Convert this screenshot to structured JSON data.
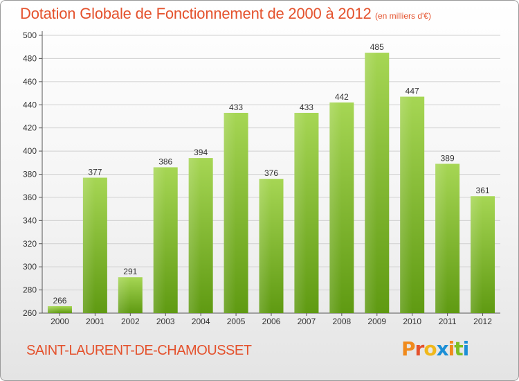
{
  "header": {
    "title": "Dotation Globale de Fonctionnement de 2000 à 2012",
    "unit": "(en milliers d'€)"
  },
  "footer": {
    "commune": "SAINT-LAURENT-DE-CHAMOUSSET",
    "logo_letters": [
      "P",
      "r",
      "o",
      "x",
      "i",
      "t",
      "i"
    ]
  },
  "colors": {
    "title": "#e4522d",
    "bar_top": "#a6d654",
    "bar_bottom": "#5f9a12",
    "grid": "#d0d0d0",
    "logo": [
      "#f08a1c",
      "#e4522d",
      "#f0b81c",
      "#1c8fd6",
      "#f08a1c",
      "#7cbf23",
      "#1c8fd6"
    ]
  },
  "chart_data": {
    "type": "bar",
    "categories": [
      "2000",
      "2001",
      "2002",
      "2003",
      "2004",
      "2005",
      "2006",
      "2007",
      "2008",
      "2009",
      "2010",
      "2011",
      "2012"
    ],
    "values": [
      266,
      377,
      291,
      386,
      394,
      433,
      376,
      433,
      442,
      485,
      447,
      389,
      361
    ],
    "ylim": [
      260,
      500
    ],
    "yticks": [
      260,
      280,
      300,
      320,
      340,
      360,
      380,
      400,
      420,
      440,
      460,
      480,
      500
    ],
    "grid": true,
    "legend": "none"
  }
}
